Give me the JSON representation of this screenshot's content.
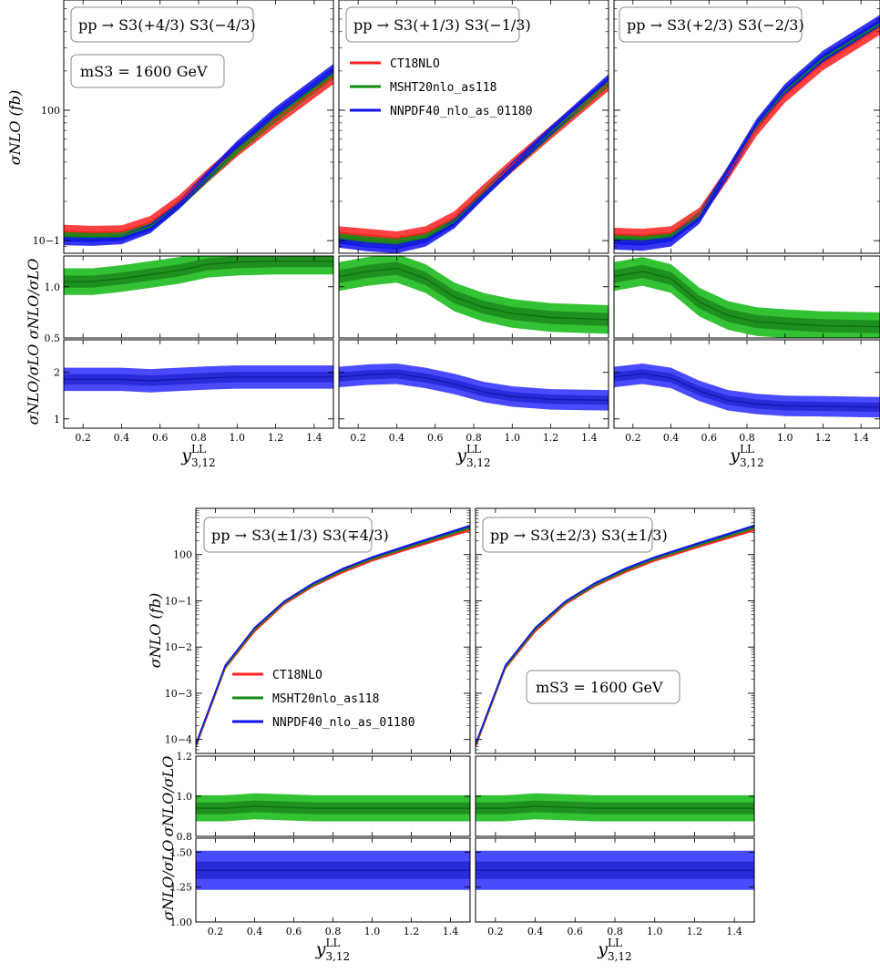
{
  "colors": {
    "ct18": "#ff2020",
    "msht": "#108a10",
    "nnpdf": "#1010ee",
    "green_outer": "#33c233",
    "green_inner": "#1f8f1f",
    "blue_outer": "#4a4aff",
    "blue_inner": "#2a2ad8"
  },
  "labels": {
    "ylabel_top": "σNLO (fb)",
    "ylabel_ratio": "σNLO/σLO",
    "xlabel": "y LL 3,12",
    "mass": "mS3 = 1600 GeV",
    "p1": "pp → S3(+4/3) S3(−4/3)",
    "p2": "pp → S3(+1/3) S3(−1/3)",
    "p3": "pp → S3(+2/3) S3(−2/3)",
    "p4": "pp → S3(±1/3) S3(∓4/3)",
    "p5": "pp → S3(±2/3) S3(±1/3)"
  },
  "legend": [
    "CT18NLO",
    "MSHT20nlo_as118",
    "NNPDF40_nlo_as_01180"
  ],
  "chart_data": [
    {
      "type": "area",
      "panel": "top-row-1",
      "x": [
        0.1,
        0.25,
        0.4,
        0.55,
        0.7,
        0.85,
        1.0,
        1.2,
        1.5
      ],
      "yscale": "log",
      "ylim": [
        0.08,
        7
      ],
      "xlim": [
        0.1,
        1.5
      ],
      "series": [
        {
          "name": "CT18NLO",
          "values": [
            0.118,
            0.116,
            0.117,
            0.138,
            0.2,
            0.32,
            0.5,
            0.85,
            1.8
          ],
          "band": 0.12
        },
        {
          "name": "MSHT20nlo_as118",
          "values": [
            0.108,
            0.107,
            0.108,
            0.128,
            0.19,
            0.31,
            0.5,
            0.88,
            1.9
          ],
          "band": 0.08
        },
        {
          "name": "NNPDF40_nlo_as_01180",
          "values": [
            0.1,
            0.099,
            0.102,
            0.124,
            0.19,
            0.32,
            0.54,
            0.98,
            2.1
          ],
          "band": 0.08
        }
      ],
      "ratio_green": {
        "ylim": [
          0.5,
          1.3
        ],
        "ticks": [
          0.5,
          1.0
        ],
        "values": [
          1.05,
          1.05,
          1.08,
          1.12,
          1.16,
          1.22,
          1.24,
          1.25,
          1.25
        ],
        "band": 0.13
      },
      "ratio_blue": {
        "ylim": [
          0.8,
          2.7
        ],
        "ticks": [
          1,
          2
        ],
        "values": [
          1.85,
          1.85,
          1.85,
          1.82,
          1.85,
          1.88,
          1.9,
          1.9,
          1.9
        ],
        "band": 0.25
      }
    },
    {
      "type": "area",
      "panel": "top-row-2",
      "x": [
        0.1,
        0.25,
        0.4,
        0.55,
        0.7,
        0.85,
        1.0,
        1.2,
        1.5
      ],
      "yscale": "log",
      "ylim": [
        0.08,
        7
      ],
      "xlim": [
        0.1,
        1.5
      ],
      "series": [
        {
          "name": "CT18NLO",
          "values": [
            0.115,
            0.11,
            0.105,
            0.115,
            0.15,
            0.24,
            0.38,
            0.68,
            1.6
          ],
          "band": 0.12
        },
        {
          "name": "MSHT20nlo_as118",
          "values": [
            0.105,
            0.1,
            0.096,
            0.106,
            0.14,
            0.23,
            0.37,
            0.68,
            1.65
          ],
          "band": 0.08
        },
        {
          "name": "NNPDF40_nlo_as_01180",
          "values": [
            0.096,
            0.09,
            0.087,
            0.098,
            0.135,
            0.225,
            0.37,
            0.7,
            1.75
          ],
          "band": 0.08
        }
      ],
      "ratio_green": {
        "ylim": [
          0.5,
          1.3
        ],
        "ticks": [
          0.5,
          1.0
        ],
        "values": [
          1.1,
          1.15,
          1.18,
          1.08,
          0.9,
          0.8,
          0.74,
          0.7,
          0.68
        ],
        "band": 0.14
      },
      "ratio_blue": {
        "ylim": [
          0.8,
          2.7
        ],
        "ticks": [
          1,
          2
        ],
        "values": [
          1.9,
          1.95,
          1.97,
          1.88,
          1.75,
          1.58,
          1.48,
          1.42,
          1.4
        ],
        "band": 0.22
      }
    },
    {
      "type": "area",
      "panel": "top-row-3",
      "x": [
        0.1,
        0.25,
        0.4,
        0.55,
        0.7,
        0.85,
        1.0,
        1.2,
        1.5
      ],
      "yscale": "log",
      "ylim": [
        0.08,
        7
      ],
      "xlim": [
        0.1,
        1.5
      ],
      "series": [
        {
          "name": "CT18NLO",
          "values": [
            0.112,
            0.11,
            0.115,
            0.16,
            0.33,
            0.72,
            1.3,
            2.3,
            4.3
          ],
          "band": 0.12
        },
        {
          "name": "MSHT20nlo_as118",
          "values": [
            0.104,
            0.102,
            0.108,
            0.155,
            0.34,
            0.76,
            1.4,
            2.5,
            4.6
          ],
          "band": 0.08
        },
        {
          "name": "NNPDF40_nlo_as_01180",
          "values": [
            0.095,
            0.093,
            0.1,
            0.15,
            0.34,
            0.78,
            1.45,
            2.6,
            4.9
          ],
          "band": 0.1
        }
      ],
      "ratio_green": {
        "ylim": [
          0.5,
          1.3
        ],
        "ticks": [
          0.5,
          1.0
        ],
        "values": [
          1.1,
          1.15,
          1.08,
          0.85,
          0.72,
          0.66,
          0.64,
          0.62,
          0.61
        ],
        "band": 0.14
      },
      "ratio_blue": {
        "ylim": [
          0.8,
          2.7
        ],
        "ticks": [
          1,
          2
        ],
        "values": [
          1.9,
          1.97,
          1.88,
          1.6,
          1.4,
          1.32,
          1.28,
          1.27,
          1.25
        ],
        "band": 0.22
      }
    },
    {
      "type": "area",
      "panel": "bottom-row-1",
      "x": [
        0.1,
        0.25,
        0.4,
        0.55,
        0.7,
        0.85,
        1.0,
        1.2,
        1.5
      ],
      "yscale": "log",
      "ylim": [
        5e-05,
        10
      ],
      "xlim": [
        0.1,
        1.5
      ],
      "series": [
        {
          "name": "CT18NLO",
          "values": [
            7e-05,
            0.0035,
            0.022,
            0.085,
            0.21,
            0.42,
            0.75,
            1.4,
            3.4
          ],
          "band": 0.06
        },
        {
          "name": "MSHT20nlo_as118",
          "values": [
            7.5e-05,
            0.0037,
            0.024,
            0.09,
            0.22,
            0.45,
            0.8,
            1.5,
            3.8
          ],
          "band": 0.06
        },
        {
          "name": "NNPDF40_nlo_as_01180",
          "values": [
            8e-05,
            0.004,
            0.026,
            0.096,
            0.24,
            0.49,
            0.87,
            1.65,
            4.2
          ],
          "band": 0.06
        }
      ],
      "ratio_green": {
        "ylim": [
          0.8,
          1.2
        ],
        "ticks": [
          0.8,
          1.0,
          1.2
        ],
        "values": [
          0.94,
          0.94,
          0.95,
          0.945,
          0.94,
          0.94,
          0.94,
          0.94,
          0.94
        ],
        "band": 0.065
      },
      "ratio_blue": {
        "ylim": [
          1.0,
          1.6
        ],
        "ticks": [
          1.0,
          1.25,
          1.5
        ],
        "values": [
          1.37,
          1.37,
          1.37,
          1.37,
          1.37,
          1.37,
          1.37,
          1.37,
          1.37
        ],
        "band": 0.14
      }
    },
    {
      "type": "area",
      "panel": "bottom-row-2",
      "x": [
        0.1,
        0.25,
        0.4,
        0.55,
        0.7,
        0.85,
        1.0,
        1.2,
        1.5
      ],
      "yscale": "log",
      "ylim": [
        5e-05,
        10
      ],
      "xlim": [
        0.1,
        1.5
      ],
      "series": [
        {
          "name": "CT18NLO",
          "values": [
            7e-05,
            0.0035,
            0.022,
            0.085,
            0.21,
            0.42,
            0.75,
            1.4,
            3.4
          ],
          "band": 0.06
        },
        {
          "name": "MSHT20nlo_as118",
          "values": [
            7.5e-05,
            0.0037,
            0.024,
            0.09,
            0.22,
            0.45,
            0.8,
            1.5,
            3.8
          ],
          "band": 0.06
        },
        {
          "name": "NNPDF40_nlo_as_01180",
          "values": [
            8e-05,
            0.004,
            0.026,
            0.096,
            0.24,
            0.49,
            0.87,
            1.65,
            4.2
          ],
          "band": 0.06
        }
      ],
      "ratio_green": {
        "ylim": [
          0.8,
          1.2
        ],
        "ticks": [
          0.8,
          1.0,
          1.2
        ],
        "values": [
          0.94,
          0.94,
          0.95,
          0.945,
          0.94,
          0.94,
          0.94,
          0.94,
          0.94
        ],
        "band": 0.065
      },
      "ratio_blue": {
        "ylim": [
          1.0,
          1.6
        ],
        "ticks": [
          1.0,
          1.25,
          1.5
        ],
        "values": [
          1.37,
          1.37,
          1.37,
          1.37,
          1.37,
          1.37,
          1.37,
          1.37,
          1.37
        ],
        "band": 0.14
      }
    }
  ],
  "xticks": [
    0.2,
    0.4,
    0.6,
    0.8,
    1.0,
    1.2,
    1.4
  ],
  "xtick_labels": [
    "0.2",
    "0.4",
    "0.6",
    "0.8",
    "1.0",
    "1.2",
    "1.4"
  ],
  "top_log_ticks_row1": [
    "10−1",
    "100"
  ],
  "top_log_ticks_row2": [
    "10−4",
    "10−3",
    "10−2",
    "10−1",
    "100"
  ]
}
